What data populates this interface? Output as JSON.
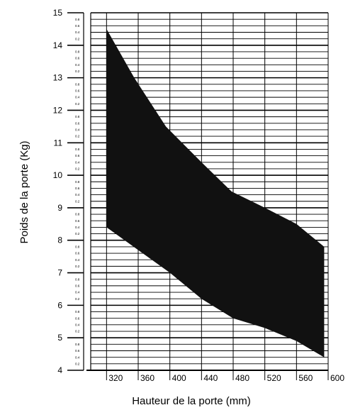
{
  "chart_data": {
    "type": "area",
    "xlabel": "Hauteur de la porte (mm)",
    "ylabel": "Poids de la porte (Kg)",
    "xlim": [
      300,
      600
    ],
    "ylim": [
      4,
      15
    ],
    "x_ticks": [
      "320",
      "360",
      "400",
      "440",
      "480",
      "520",
      "560",
      "600"
    ],
    "y_ticks": [
      "4",
      "5",
      "6",
      "7",
      "8",
      "9",
      "10",
      "11",
      "12",
      "13",
      "14",
      "15"
    ],
    "y_minor_labels": [
      "0.2",
      "0.4",
      "0.6",
      "0.8"
    ],
    "grid": true,
    "band": {
      "upper": [
        {
          "x": 320,
          "y": 14.5
        },
        {
          "x": 355,
          "y": 13.0
        },
        {
          "x": 395,
          "y": 11.5
        },
        {
          "x": 440,
          "y": 10.4
        },
        {
          "x": 478,
          "y": 9.5
        },
        {
          "x": 520,
          "y": 9.0
        },
        {
          "x": 560,
          "y": 8.5
        },
        {
          "x": 595,
          "y": 7.8
        }
      ],
      "lower": [
        {
          "x": 320,
          "y": 8.4
        },
        {
          "x": 360,
          "y": 7.7
        },
        {
          "x": 400,
          "y": 7.0
        },
        {
          "x": 440,
          "y": 6.2
        },
        {
          "x": 480,
          "y": 5.6
        },
        {
          "x": 520,
          "y": 5.3
        },
        {
          "x": 560,
          "y": 4.9
        },
        {
          "x": 595,
          "y": 4.4
        }
      ],
      "color": "#111111"
    }
  }
}
